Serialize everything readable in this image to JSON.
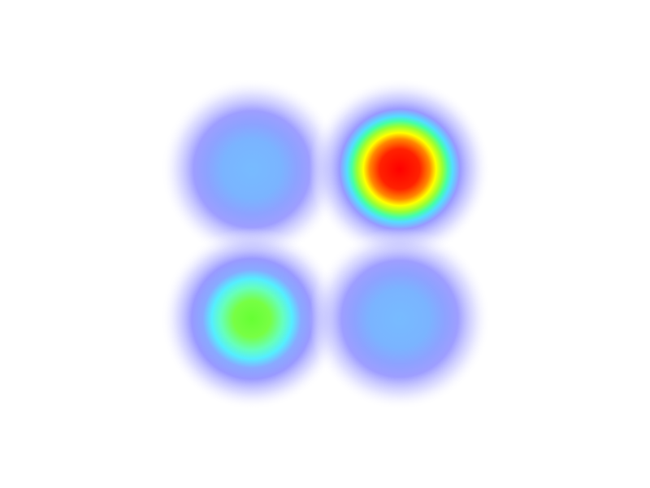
{
  "chart_data": {
    "type": "heatmap",
    "title": "",
    "xlabel": "",
    "ylabel": "",
    "grid": false,
    "legend": "none",
    "color_scale": [
      "#ffffff",
      "#9999ff",
      "#77bbff",
      "#55ffdd",
      "#66ff44",
      "#ffff00",
      "#ff8800",
      "#ff0000"
    ],
    "points": [
      {
        "x": 0,
        "y": 1,
        "value": 0.3
      },
      {
        "x": 1,
        "y": 1,
        "value": 1.0
      },
      {
        "x": 0,
        "y": 0,
        "value": 0.55
      },
      {
        "x": 1,
        "y": 0,
        "value": 0.3
      }
    ]
  }
}
